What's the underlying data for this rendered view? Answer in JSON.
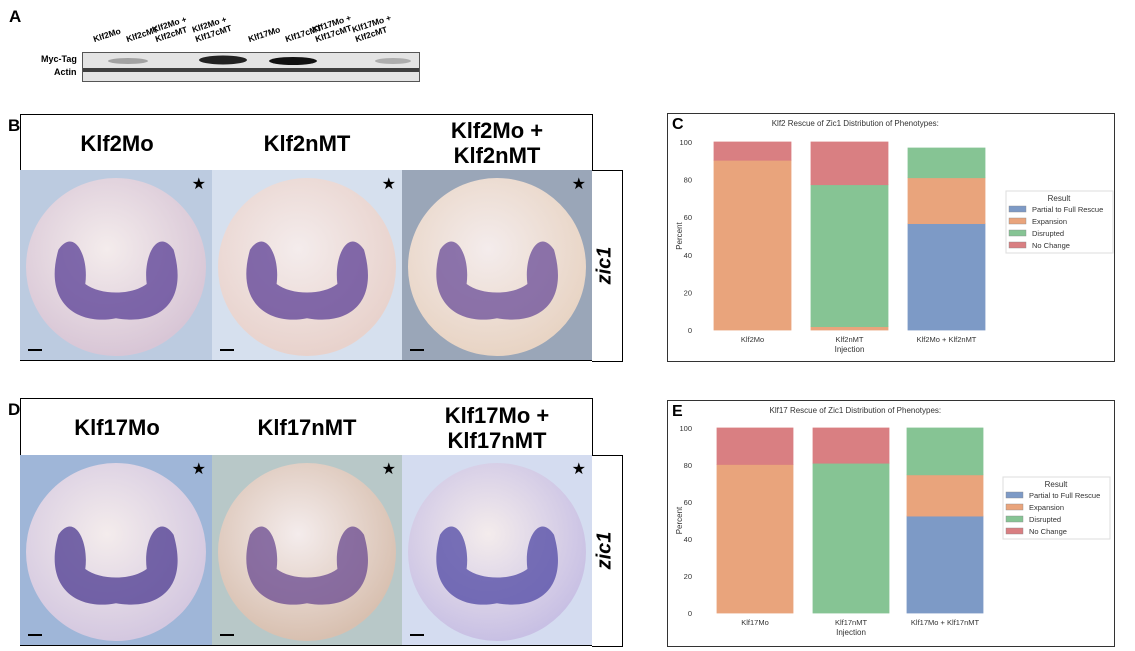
{
  "panel_labels": {
    "a": "A",
    "b": "B",
    "c": "C",
    "d": "D",
    "e": "E"
  },
  "western_blot": {
    "lanes": [
      "Klf2Mo",
      "Klf2cMT",
      "Klf2Mo +\nKlf2cMT",
      "Klf2Mo +\nKlf17cMT",
      "Klf17Mo",
      "Klf17cMT",
      "Klf17Mo +\nKlf17cMT",
      "Klf17Mo +\nKlf2cMT"
    ],
    "rows": [
      "Myc-Tag",
      "Actin"
    ]
  },
  "panel_b": {
    "columns": [
      "Klf2Mo",
      "Klf2nMT",
      "Klf2Mo +\nKlf2nMT"
    ],
    "marker": "zic1",
    "star_icon": "★"
  },
  "panel_d": {
    "columns": [
      "Klf17Mo",
      "Klf17nMT",
      "Klf17Mo +\nKlf17nMT"
    ],
    "marker": "zic1",
    "star_icon": "★"
  },
  "colors": {
    "Partial to Full Rescue": "#7d9ac6",
    "Expansion": "#e9a47c",
    "Disrupted": "#86c494",
    "No Change": "#d97f82"
  },
  "chart_data": [
    {
      "type": "bar",
      "stacked": true,
      "title": "Klf2 Rescue of Zic1 Distribution of Phenotypes:",
      "xlabel": "Injection",
      "ylabel": "Percent",
      "ylim": [
        0,
        100
      ],
      "yticks": [
        0,
        20,
        40,
        60,
        80,
        100
      ],
      "categories": [
        "Klf2Mo",
        "Klf2nMT",
        "Klf2Mo + Klf2nMT"
      ],
      "legend_title": "Result",
      "legend_position": "right",
      "series": [
        {
          "name": "Partial to Full Rescue",
          "values": [
            0,
            0,
            56.6
          ]
        },
        {
          "name": "Expansion",
          "values": [
            90.3,
            1.8,
            24.4
          ]
        },
        {
          "name": "Disrupted",
          "values": [
            0,
            75.5,
            15.8
          ]
        },
        {
          "name": "No Change",
          "values": [
            9.7,
            22.7,
            0
          ]
        }
      ]
    },
    {
      "type": "bar",
      "stacked": true,
      "title": "Klf17 Rescue of Zic1 Distribution of Phenotypes:",
      "xlabel": "Injection",
      "ylabel": "Percent",
      "ylim": [
        0,
        100
      ],
      "yticks": [
        0,
        20,
        40,
        60,
        80,
        100
      ],
      "categories": [
        "Klf17Mo",
        "Klf17nMT",
        "Klf17Mo + Klf17nMT"
      ],
      "legend_title": "Result",
      "legend_position": "right",
      "series": [
        {
          "name": "Partial to Full Rescue",
          "values": [
            0,
            0,
            52.4
          ]
        },
        {
          "name": "Expansion",
          "values": [
            80.3,
            0,
            22.3
          ]
        },
        {
          "name": "Disrupted",
          "values": [
            0,
            81,
            25.3
          ]
        },
        {
          "name": "No Change",
          "values": [
            19.7,
            19,
            0
          ]
        }
      ]
    }
  ]
}
